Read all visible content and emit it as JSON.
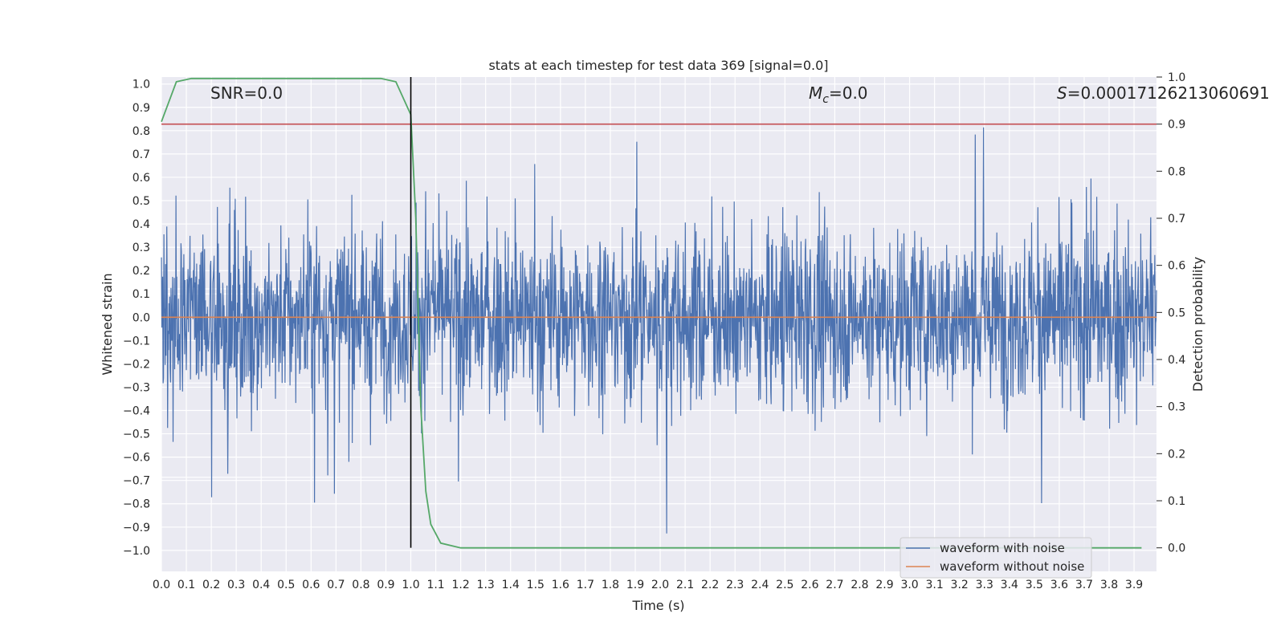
{
  "chart_data": {
    "type": "line",
    "title": "stats at each timestep for test data 369 [signal=0.0]",
    "xlabel": "Time (s)",
    "ylabel_left": "Whitened strain",
    "ylabel_right": "Detection probability",
    "xlim": [
      0.0,
      3.99
    ],
    "ylim_left": [
      -1.09,
      1.03
    ],
    "ylim_right": [
      -0.05,
      1.0
    ],
    "x_ticks": [
      "0.0",
      "0.1",
      "0.2",
      "0.3",
      "0.4",
      "0.5",
      "0.6",
      "0.7",
      "0.8",
      "0.9",
      "1.0",
      "1.1",
      "1.2",
      "1.3",
      "1.4",
      "1.5",
      "1.6",
      "1.7",
      "1.8",
      "1.9",
      "2.0",
      "2.1",
      "2.2",
      "2.3",
      "2.4",
      "2.5",
      "2.6",
      "2.7",
      "2.8",
      "2.9",
      "3.0",
      "3.1",
      "3.2",
      "3.3",
      "3.4",
      "3.5",
      "3.6",
      "3.7",
      "3.8",
      "3.9"
    ],
    "y_ticks_left": [
      "−1.0",
      "−0.9",
      "−0.8",
      "−0.7",
      "−0.6",
      "−0.5",
      "−0.4",
      "−0.3",
      "−0.2",
      "−0.1",
      "0.0",
      "0.1",
      "0.2",
      "0.3",
      "0.4",
      "0.5",
      "0.6",
      "0.7",
      "0.8",
      "0.9",
      "1.0"
    ],
    "y_ticks_right": [
      "0.0",
      "0.1",
      "0.2",
      "0.3",
      "0.4",
      "0.5",
      "0.6",
      "0.7",
      "0.8",
      "0.9",
      "1.0"
    ],
    "annotations": {
      "snr": "SNR=0.0",
      "mc_symbol": "M",
      "mc_sub": "c",
      "mc_value": "=0.0",
      "s_symbol": "S",
      "s_value": "=0.00017126213060691"
    },
    "series": [
      {
        "name": "waveform with noise",
        "color": "#4c72b0",
        "axis": "left",
        "kind": "noise",
        "amplitude": 0.35,
        "x_range": [
          0.0,
          3.99
        ]
      },
      {
        "name": "waveform without noise",
        "color": "#dd8452",
        "axis": "left",
        "y": 0.0
      },
      {
        "name": "detection probability",
        "color": "#55a868",
        "axis": "right",
        "legend": false,
        "x": [
          0.0,
          0.06,
          0.12,
          0.2,
          0.3,
          0.5,
          0.7,
          0.88,
          0.94,
          1.0,
          1.02,
          1.04,
          1.06,
          1.08,
          1.12,
          1.2,
          1.5,
          2.0,
          2.5,
          3.0,
          3.5,
          3.93
        ],
        "y": [
          0.905,
          0.99,
          0.997,
          0.997,
          0.997,
          0.997,
          0.997,
          0.997,
          0.99,
          0.92,
          0.7,
          0.3,
          0.12,
          0.05,
          0.01,
          0.0,
          0.0,
          0.0,
          0.0,
          0.0,
          0.0,
          0.0
        ]
      },
      {
        "name": "threshold",
        "color": "#c44e52",
        "axis": "right",
        "legend": false,
        "y": 0.9
      },
      {
        "name": "trigger",
        "color": "#000000",
        "axis": "right",
        "legend": false,
        "x": 1.0,
        "y_range": [
          0.0,
          1.0
        ]
      }
    ],
    "legend": {
      "position": "bottom-right",
      "entries": [
        "waveform with noise",
        "waveform without noise"
      ]
    }
  }
}
